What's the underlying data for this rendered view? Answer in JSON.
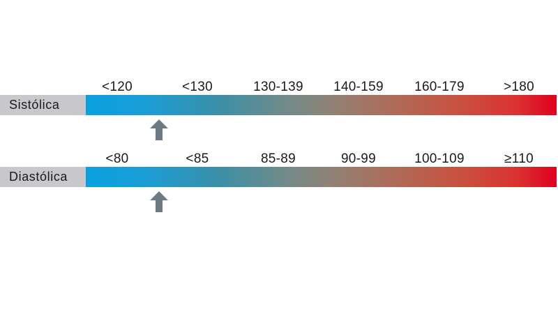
{
  "rows": [
    {
      "label": "Sistólica",
      "ticks": [
        "<120",
        "<130",
        "130-139",
        "140-159",
        "160-179",
        ">180"
      ],
      "marker_position_fraction": 0.155
    },
    {
      "label": "Diastólica",
      "ticks": [
        "<80",
        "<85",
        "85-89",
        "90-99",
        "100-109",
        "≥110"
      ],
      "marker_position_fraction": 0.155
    }
  ],
  "colors": {
    "label_background": "#c8c8cc",
    "gradient_start": "#0aa0e0",
    "gradient_mid": "#8f8275",
    "gradient_end": "#e0001e",
    "arrow": "#6e7b82"
  },
  "icons": {
    "marker": "up-arrow-icon"
  }
}
